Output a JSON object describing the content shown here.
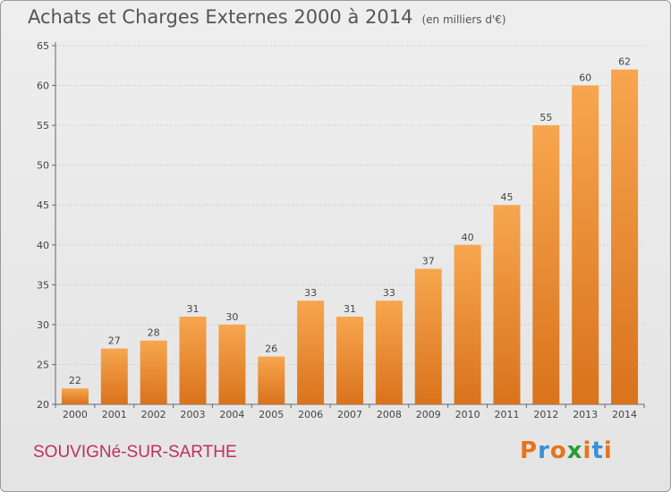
{
  "header": {
    "title": "Achats et Charges Externes 2000 à 2014",
    "subtitle": "(en milliers d'€)"
  },
  "footer": {
    "place": "SOUVIGNé-SUR-SARTHE",
    "logo": "Proxiti"
  },
  "colors": {
    "bar_light": "#f7a64f",
    "bar_dark": "#d9731c",
    "place_text": "#c0305a",
    "logo_letters": [
      "#e8731c",
      "#3a8fd8",
      "#e8731c",
      "#2a9a3a",
      "#e8731c",
      "#3a8fd8",
      "#e8731c"
    ]
  },
  "chart_data": {
    "type": "bar",
    "title": "Achats et Charges Externes 2000 à 2014",
    "subtitle": "(en milliers d'€)",
    "categories": [
      "2000",
      "2001",
      "2002",
      "2003",
      "2004",
      "2005",
      "2006",
      "2007",
      "2008",
      "2009",
      "2010",
      "2011",
      "2012",
      "2013",
      "2014"
    ],
    "values": [
      22,
      27,
      28,
      31,
      30,
      26,
      33,
      31,
      33,
      37,
      40,
      45,
      55,
      60,
      62
    ],
    "ylim": [
      20,
      65
    ],
    "yticks": [
      20,
      25,
      30,
      35,
      40,
      45,
      50,
      55,
      60,
      65
    ],
    "grid": true,
    "xlabel": "",
    "ylabel": ""
  }
}
